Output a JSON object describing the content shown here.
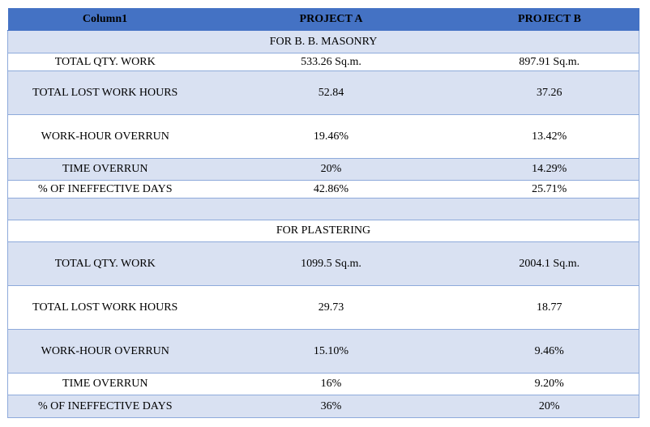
{
  "header": {
    "col1": "Column1",
    "col2": "PROJECT A",
    "col3": "PROJECT B"
  },
  "sections": [
    {
      "title": "FOR B. B. MASONRY",
      "rows": [
        {
          "label": "TOTAL QTY. WORK",
          "a": "533.26 Sq.m.",
          "b": "897.91 Sq.m."
        },
        {
          "label": "TOTAL LOST WORK HOURS",
          "a": "52.84",
          "b": "37.26"
        },
        {
          "label": "WORK-HOUR OVERRUN",
          "a": "19.46%",
          "b": "13.42%"
        },
        {
          "label": "TIME OVERRUN",
          "a": "20%",
          "b": "14.29%"
        },
        {
          "label": "% OF INEFFECTIVE DAYS",
          "a": "42.86%",
          "b": "25.71%"
        }
      ]
    },
    {
      "title": "FOR PLASTERING",
      "rows": [
        {
          "label": "TOTAL QTY. WORK",
          "a": "1099.5 Sq.m.",
          "b": "2004.1 Sq.m."
        },
        {
          "label": "TOTAL LOST WORK HOURS",
          "a": "29.73",
          "b": "18.77"
        },
        {
          "label": "WORK-HOUR OVERRUN",
          "a": "15.10%",
          "b": "9.46%"
        },
        {
          "label": "TIME OVERRUN",
          "a": "16%",
          "b": "9.20%"
        },
        {
          "label": "% OF INEFFECTIVE DAYS",
          "a": "36%",
          "b": "20%"
        }
      ]
    }
  ]
}
